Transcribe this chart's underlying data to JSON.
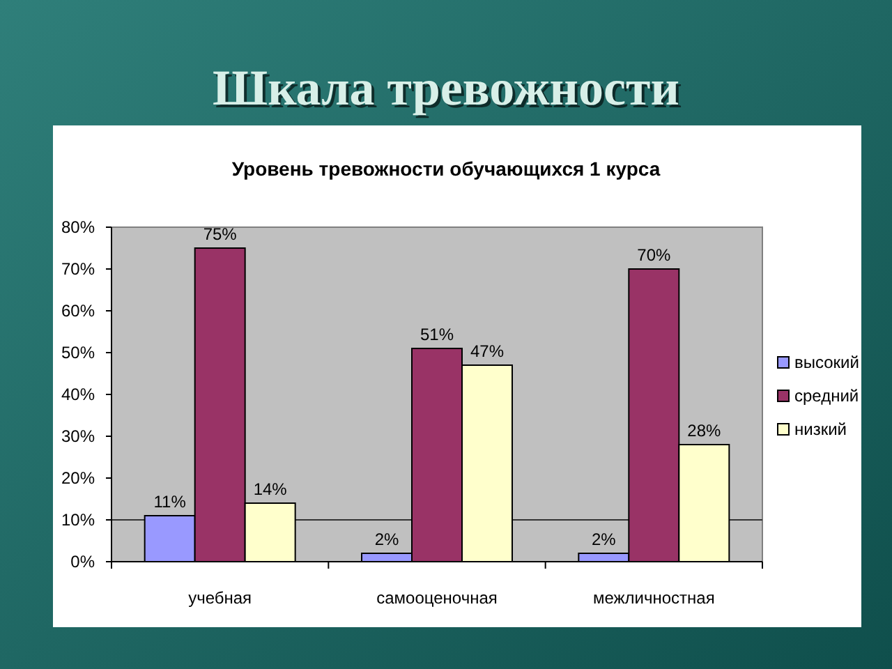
{
  "chart_data": {
    "type": "bar",
    "title": "Шкала тревожности",
    "subtitle": "Уровень тревожности обучающихся 1 курса",
    "categories": [
      "учебная",
      "самооценочная",
      "межличностная"
    ],
    "series": [
      {
        "name": "высокий",
        "color": "#9999ff",
        "values": [
          11,
          2,
          2
        ],
        "value_labels": [
          "11%",
          "2%",
          "2%"
        ]
      },
      {
        "name": "средний",
        "color": "#993366",
        "values": [
          75,
          51,
          70
        ],
        "value_labels": [
          "75%",
          "51%",
          "70%"
        ]
      },
      {
        "name": "низкий",
        "color": "#ffffcc",
        "values": [
          14,
          47,
          28
        ],
        "value_labels": [
          "14%",
          "47%",
          "28%"
        ]
      }
    ],
    "ylim": [
      0,
      80
    ],
    "yticks": [
      {
        "value": 0,
        "label": "0%"
      },
      {
        "value": 10,
        "label": "10%"
      },
      {
        "value": 20,
        "label": "20%"
      },
      {
        "value": 30,
        "label": "30%"
      },
      {
        "value": 40,
        "label": "40%"
      },
      {
        "value": 50,
        "label": "50%"
      },
      {
        "value": 60,
        "label": "60%"
      },
      {
        "value": 70,
        "label": "70%"
      },
      {
        "value": 80,
        "label": "80%"
      }
    ],
    "ref_lines": [
      {
        "axis": "y",
        "value": 10,
        "color": "#333333"
      }
    ],
    "grid": false,
    "legend": "right"
  }
}
